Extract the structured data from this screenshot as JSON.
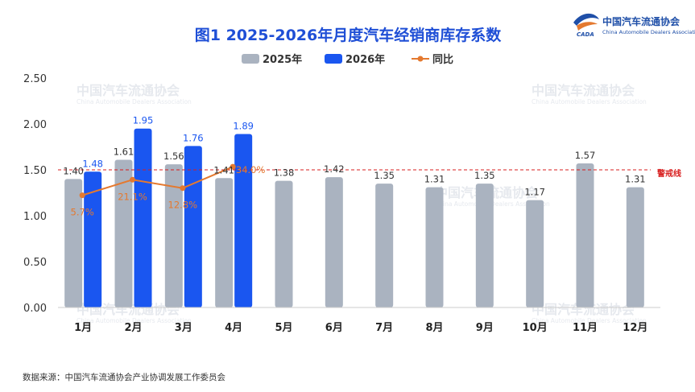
{
  "chart_data": {
    "type": "bar",
    "title": "图1  2025-2026年月度汽车经销商库存系数",
    "categories": [
      "1月",
      "2月",
      "3月",
      "4月",
      "5月",
      "6月",
      "7月",
      "8月",
      "9月",
      "10月",
      "11月",
      "12月"
    ],
    "series": [
      {
        "name": "2025年",
        "type": "bar",
        "color": "#aab3c0",
        "values": [
          1.4,
          1.61,
          1.56,
          1.41,
          1.38,
          1.42,
          1.35,
          1.31,
          1.35,
          1.17,
          1.57,
          1.31
        ],
        "labels": [
          "1.40",
          "1.61",
          "1.56",
          "1.41",
          "1.38",
          "1.42",
          "1.35",
          "1.31",
          "1.35",
          "1.17",
          "1.57",
          "1.31"
        ]
      },
      {
        "name": "2026年",
        "type": "bar",
        "color": "#1a56f0",
        "values": [
          1.48,
          1.95,
          1.76,
          1.89,
          null,
          null,
          null,
          null,
          null,
          null,
          null,
          null
        ],
        "labels": [
          "1.48",
          "1.95",
          "1.76",
          "1.89"
        ]
      },
      {
        "name": "同比",
        "type": "line",
        "color": "#e4792f",
        "values": [
          5.7,
          21.1,
          12.8,
          34.0,
          null,
          null,
          null,
          null,
          null,
          null,
          null,
          null
        ],
        "labels": [
          "5.7%",
          "21.1%",
          "12.8%",
          "34.0%"
        ]
      }
    ],
    "yticks": [
      "0.00",
      "0.50",
      "1.00",
      "1.50",
      "2.00",
      "2.50"
    ],
    "ylim": [
      0,
      2.5
    ],
    "reference_line": {
      "value": 1.5,
      "label": "警戒线",
      "color": "#d81e1e"
    },
    "legend_position": "top-center",
    "grid": false
  },
  "source": "数据来源：中国汽车流通协会产业协调发展工作委员会",
  "logo": {
    "name_cn": "中国汽车流通协会",
    "name_en": "China Automobile Dealers Association",
    "mark": "CADA"
  },
  "watermark": {
    "name_cn": "中国汽车流通协会",
    "name_en": "China Automobile Dealers Association"
  }
}
